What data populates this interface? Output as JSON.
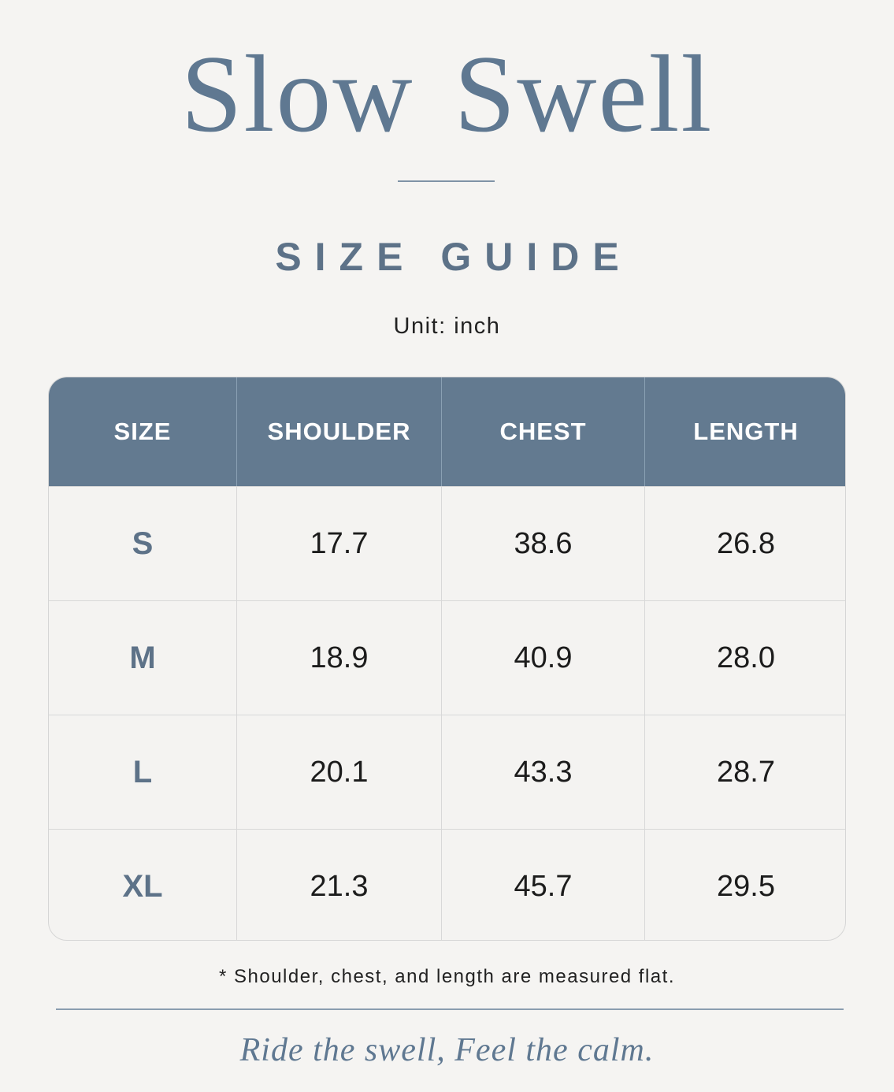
{
  "brand": "Slow Swell",
  "heading": "SIZE GUIDE",
  "unit": "Unit: inch",
  "table": {
    "columns": [
      "SIZE",
      "SHOULDER",
      "CHEST",
      "LENGTH"
    ],
    "rows": [
      [
        "S",
        "17.7",
        "38.6",
        "26.8"
      ],
      [
        "M",
        "18.9",
        "40.9",
        "28.0"
      ],
      [
        "L",
        "20.1",
        "43.3",
        "28.7"
      ],
      [
        "XL",
        "21.3",
        "45.7",
        "29.5"
      ]
    ]
  },
  "note": "* Shoulder, chest, and length are measured flat.",
  "tagline": "Ride the swell,  Feel the calm."
}
